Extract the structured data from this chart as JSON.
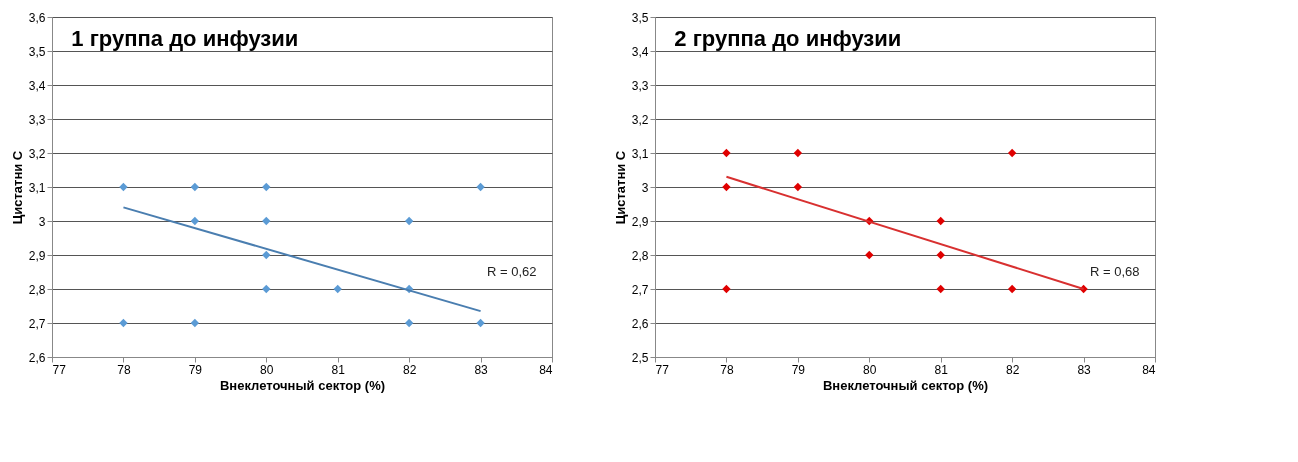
{
  "chart_data": [
    {
      "type": "scatter",
      "title": "1 группа до инфузии",
      "xlabel": "Внеклеточный сектор (%)",
      "ylabel": "Цистатни С",
      "xlim": [
        77,
        84
      ],
      "xticks": [
        77,
        78,
        79,
        80,
        81,
        82,
        83,
        84
      ],
      "ylim": [
        2.6,
        3.6
      ],
      "yticks": [
        {
          "value": 2.6,
          "label": "2,6"
        },
        {
          "value": 2.7,
          "label": "2,7"
        },
        {
          "value": 2.8,
          "label": "2,8"
        },
        {
          "value": 2.9,
          "label": "2,9"
        },
        {
          "value": 3.0,
          "label": "3"
        },
        {
          "value": 3.1,
          "label": "3,1"
        },
        {
          "value": 3.2,
          "label": "3,2"
        },
        {
          "value": 3.3,
          "label": "3,3"
        },
        {
          "value": 3.4,
          "label": "3,4"
        },
        {
          "value": 3.5,
          "label": "3,5"
        },
        {
          "value": 3.6,
          "label": "3,6"
        }
      ],
      "grid": "y",
      "annotations": [
        "R = 0,62"
      ],
      "series": [
        {
          "marker": "diamond",
          "color": "#5b9bd5",
          "x": [
            78,
            79,
            80,
            83,
            79,
            80,
            82,
            80,
            80,
            81,
            82,
            78,
            79,
            82,
            83
          ],
          "values": [
            3.1,
            3.1,
            3.1,
            3.1,
            3.0,
            3.0,
            3.0,
            2.9,
            2.8,
            2.8,
            2.8,
            2.7,
            2.7,
            2.7,
            2.7
          ]
        },
        {
          "type": "line",
          "marker": "none",
          "color": "#4a7eb0",
          "x": [
            78,
            83
          ],
          "values": [
            3.04,
            2.735
          ]
        }
      ]
    },
    {
      "type": "scatter",
      "title": "2 группа до инфузии",
      "xlabel": "Внеклеточный сектор (%)",
      "ylabel": "Цистатни С",
      "xlim": [
        77,
        84
      ],
      "xticks": [
        77,
        78,
        79,
        80,
        81,
        82,
        83,
        84
      ],
      "ylim": [
        2.5,
        3.5
      ],
      "yticks": [
        {
          "value": 2.5,
          "label": "2,5"
        },
        {
          "value": 2.6,
          "label": "2,6"
        },
        {
          "value": 2.7,
          "label": "2,7"
        },
        {
          "value": 2.8,
          "label": "2,8"
        },
        {
          "value": 2.9,
          "label": "2,9"
        },
        {
          "value": 3.0,
          "label": "3"
        },
        {
          "value": 3.1,
          "label": "3,1"
        },
        {
          "value": 3.2,
          "label": "3,2"
        },
        {
          "value": 3.3,
          "label": "3,3"
        },
        {
          "value": 3.4,
          "label": "3,4"
        },
        {
          "value": 3.5,
          "label": "3,5"
        }
      ],
      "grid": "y",
      "annotations": [
        "R = 0,68"
      ],
      "series": [
        {
          "marker": "diamond",
          "color": "#e00000",
          "x": [
            78,
            79,
            82,
            78,
            79,
            80,
            81,
            80,
            81,
            78,
            81,
            82,
            83
          ],
          "values": [
            3.1,
            3.1,
            3.1,
            3.0,
            3.0,
            2.9,
            2.9,
            2.8,
            2.8,
            2.7,
            2.7,
            2.7,
            2.7
          ]
        },
        {
          "type": "line",
          "marker": "none",
          "color": "#d83030",
          "x": [
            78,
            83
          ],
          "values": [
            3.03,
            2.7
          ]
        }
      ]
    }
  ]
}
